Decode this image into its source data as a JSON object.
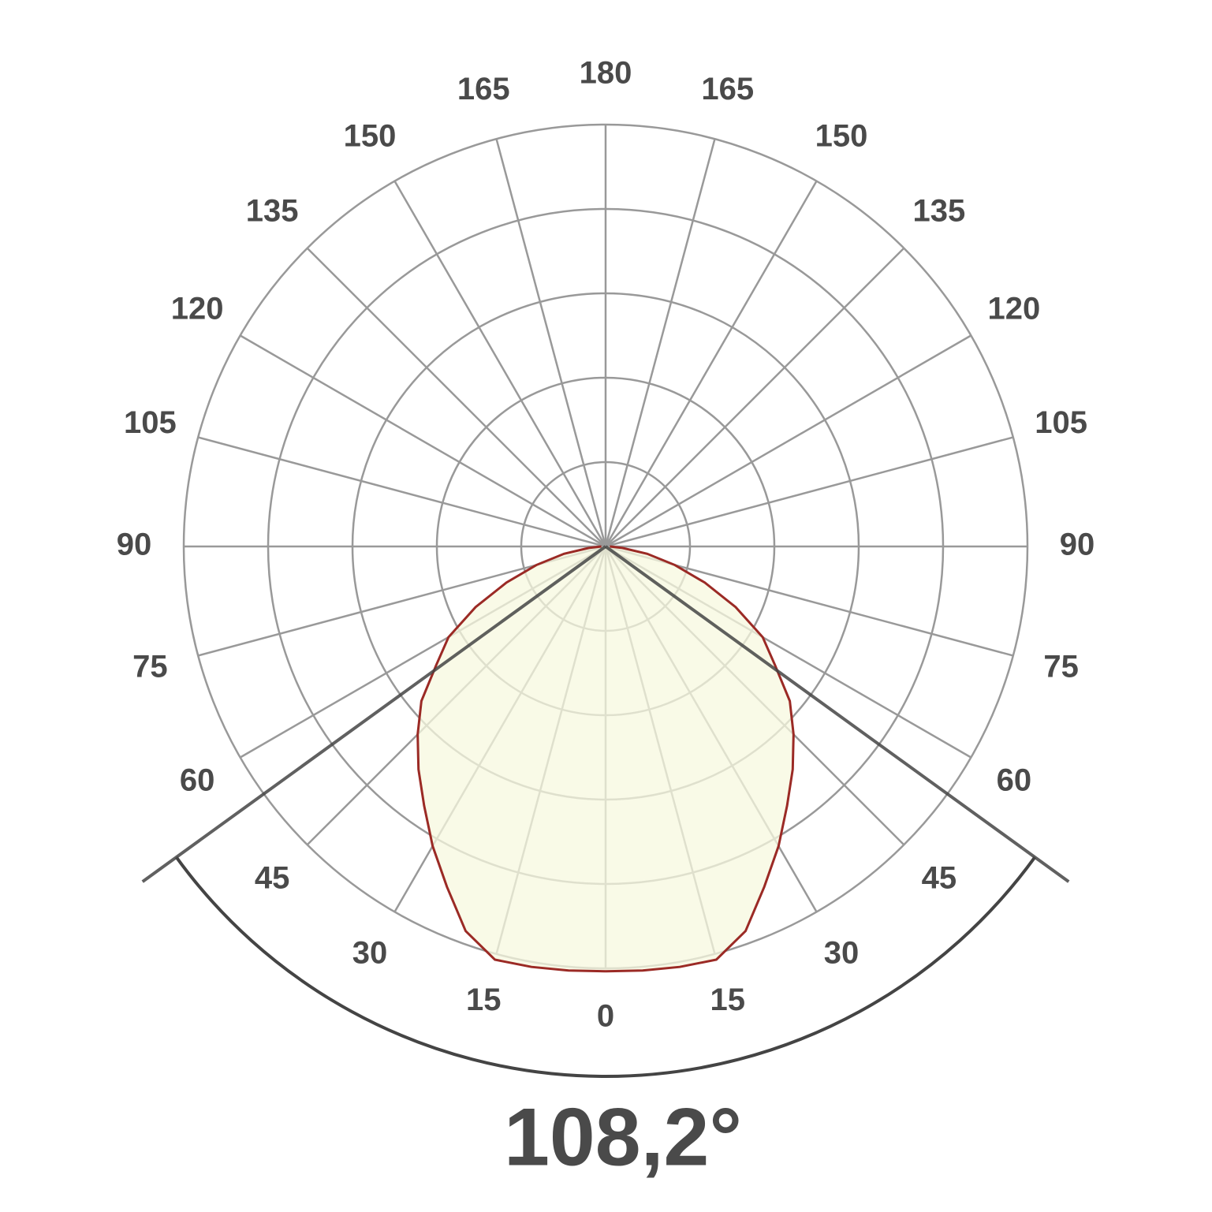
{
  "chart_data": {
    "type": "polar",
    "theta": [
      0,
      5,
      10,
      15,
      20,
      25,
      30,
      35,
      40,
      45,
      50,
      55,
      60,
      65,
      70,
      75,
      80,
      85,
      90
    ],
    "values": [
      100.7,
      100.9,
      101.2,
      101.4,
      97,
      89,
      82,
      75,
      69,
      63,
      57,
      49,
      43,
      34,
      25,
      17,
      10,
      4,
      1
    ],
    "color": "#9b2a25",
    "fill": "#f7f8df",
    "thetaticks": [
      0,
      15,
      30,
      45,
      60,
      75,
      90,
      105,
      120,
      135,
      150,
      165,
      180
    ],
    "rlim": [
      0,
      100
    ],
    "rticks": [
      20,
      40,
      60,
      80,
      100
    ],
    "grid": true,
    "beam_angle": {
      "value": 108.2,
      "label": "108,2°"
    }
  }
}
